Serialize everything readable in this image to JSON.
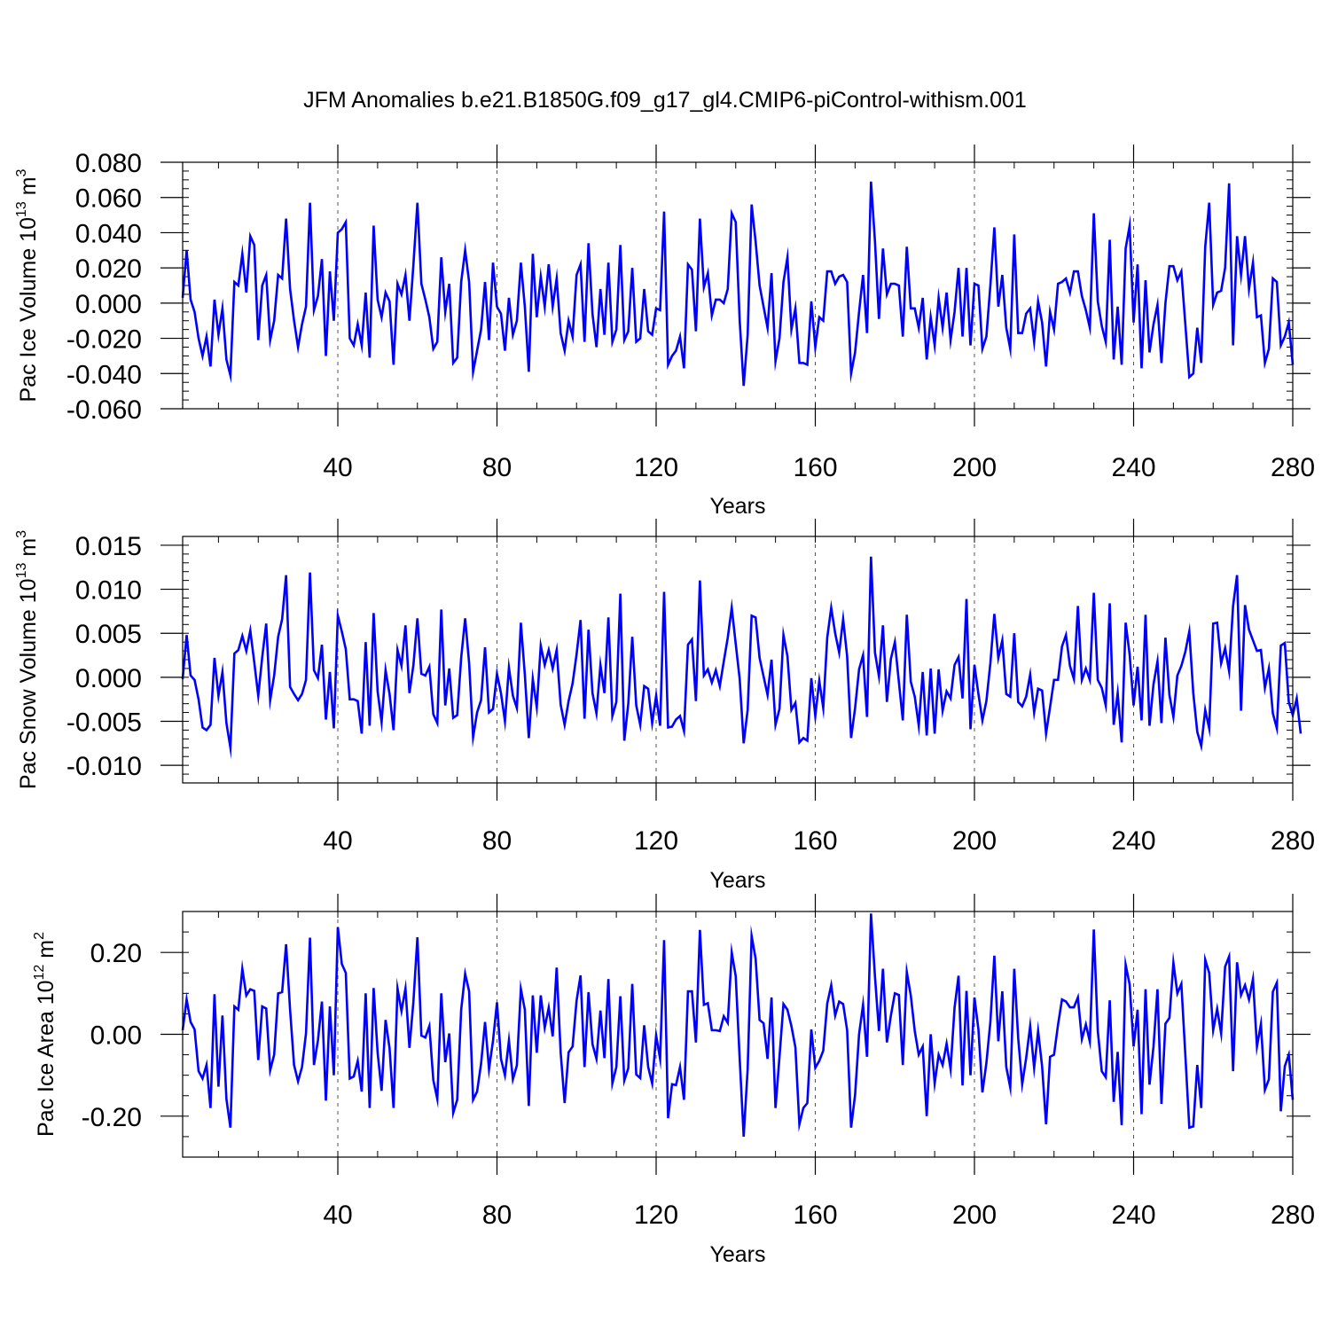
{
  "title": "JFM Anomalies b.e21.B1850G.f09_g17_gl4.CMIP6-piControl-withism.001",
  "colors": {
    "line": "#0000ff",
    "axes": "#000000",
    "grid": "#555555",
    "background": "#ffffff"
  },
  "chart_data": [
    {
      "type": "line",
      "name": "ice-volume",
      "title": "JFM Anomalies b.e21.B1850G.f09_g17_gl4.CMIP6-piControl-withism.001",
      "ylabel_prefix": "Pac Ice Volume 10",
      "ylabel_exp": "13",
      "ylabel_unit": " m",
      "ylabel_unit_exp": "3",
      "xlabel": "Years",
      "xlim": [
        1,
        280
      ],
      "ylim": [
        -0.06,
        0.08
      ],
      "xticks": [
        40,
        80,
        120,
        160,
        200,
        240,
        280
      ],
      "xtick_labels": [
        "40",
        "80",
        "120",
        "160",
        "200",
        "240",
        "280"
      ],
      "yticks": [
        -0.06,
        -0.04,
        -0.02,
        0.0,
        0.02,
        0.04,
        0.06,
        0.08
      ],
      "ytick_labels": [
        "-0.060",
        "-0.040",
        "-0.020",
        "0.000",
        "0.020",
        "0.040",
        "0.060",
        "0.080"
      ],
      "yminor": 0.005,
      "grid": "vertical-dashed",
      "values": [
        0.003,
        0.03,
        0.002,
        -0.005,
        -0.02,
        -0.03,
        -0.019,
        -0.036,
        0.002,
        -0.018,
        -0.003,
        -0.032,
        -0.041,
        0.012,
        0.01,
        0.028,
        0.006,
        0.038,
        0.033,
        -0.021,
        0.01,
        0.016,
        -0.021,
        -0.01,
        0.016,
        0.014,
        0.048,
        0.008,
        -0.01,
        -0.025,
        -0.012,
        -0.002,
        0.057,
        -0.004,
        0.004,
        0.025,
        -0.03,
        0.018,
        -0.01,
        0.04,
        0.042,
        0.046,
        -0.02,
        -0.024,
        -0.012,
        -0.024,
        0.006,
        -0.031,
        0.044,
        0.002,
        -0.008,
        0.006,
        0.001,
        -0.035,
        0.011,
        0.005,
        0.016,
        -0.01,
        0.022,
        0.057,
        0.011,
        0.002,
        -0.008,
        -0.026,
        -0.022,
        0.026,
        -0.005,
        0.011,
        -0.034,
        -0.031,
        0.012,
        0.03,
        0.012,
        -0.039,
        -0.027,
        -0.015,
        0.012,
        -0.021,
        0.023,
        -0.002,
        -0.006,
        -0.027,
        0.003,
        -0.018,
        -0.01,
        0.023,
        -0.002,
        -0.039,
        0.028,
        -0.008,
        0.015,
        -0.002,
        0.022,
        -0.002,
        0.014,
        -0.017,
        -0.027,
        -0.01,
        -0.019,
        0.016,
        0.022,
        -0.022,
        0.034,
        -0.006,
        -0.025,
        0.008,
        -0.018,
        0.023,
        -0.022,
        -0.015,
        0.033,
        -0.021,
        -0.016,
        0.02,
        -0.022,
        -0.02,
        0.008,
        -0.016,
        -0.018,
        -0.003,
        -0.004,
        0.052,
        -0.035,
        -0.03,
        -0.027,
        -0.019,
        -0.037,
        0.022,
        0.019,
        -0.016,
        0.048,
        0.009,
        0.017,
        -0.007,
        0.002,
        0.002,
        0.0,
        0.008,
        0.051,
        0.046,
        -0.01,
        -0.047,
        -0.018,
        0.056,
        0.035,
        0.01,
        -0.002,
        -0.014,
        0.017,
        -0.033,
        -0.02,
        0.012,
        0.026,
        -0.015,
        -0.003,
        -0.034,
        -0.034,
        -0.035,
        0.001,
        -0.025,
        -0.008,
        -0.01,
        0.018,
        0.018,
        0.011,
        0.015,
        0.016,
        0.012,
        -0.04,
        -0.028,
        -0.005,
        0.016,
        -0.017,
        0.069,
        0.035,
        -0.009,
        0.031,
        0.005,
        0.011,
        0.011,
        0.01,
        -0.019,
        0.032,
        -0.003,
        -0.003,
        -0.014,
        0.003,
        -0.032,
        -0.008,
        -0.024,
        0.003,
        -0.014,
        0.006,
        -0.021,
        -0.005,
        0.02,
        -0.019,
        0.02,
        -0.024,
        0.011,
        0.01,
        -0.026,
        -0.019,
        0.01,
        0.043,
        -0.002,
        0.016,
        -0.014,
        -0.026,
        0.039,
        -0.017,
        -0.017,
        -0.006,
        -0.003,
        -0.022,
        0.001,
        -0.011,
        -0.036,
        -0.005,
        -0.015,
        0.011,
        0.012,
        0.014,
        0.006,
        0.018,
        0.018,
        0.004,
        -0.004,
        -0.014,
        0.051,
        0.001,
        -0.013,
        -0.022,
        0.036,
        -0.032,
        -0.002,
        -0.035,
        0.031,
        0.044,
        -0.011,
        0.022,
        -0.037,
        0.013,
        -0.028,
        -0.012,
        -0.001,
        -0.034,
        0.0,
        0.021,
        0.021,
        0.013,
        0.018,
        -0.012,
        -0.042,
        -0.04,
        -0.014,
        -0.034,
        0.032,
        0.057,
        -0.001,
        0.006,
        0.007,
        0.02,
        0.068,
        -0.024,
        0.038,
        0.016,
        0.038,
        0.008,
        0.023,
        -0.008,
        -0.007,
        -0.034,
        -0.026,
        0.014,
        0.012,
        -0.024,
        -0.019,
        -0.011,
        -0.035
      ]
    },
    {
      "type": "line",
      "name": "snow-volume",
      "ylabel_prefix": "Pac Snow Volume 10",
      "ylabel_exp": "13",
      "ylabel_unit": " m",
      "ylabel_unit_exp": "3",
      "xlabel": "Years",
      "xlim": [
        1,
        280
      ],
      "ylim": [
        -0.012,
        0.016
      ],
      "xticks": [
        40,
        80,
        120,
        160,
        200,
        240,
        280
      ],
      "xtick_labels": [
        "40",
        "80",
        "120",
        "160",
        "200",
        "240",
        "280"
      ],
      "yticks": [
        -0.01,
        -0.005,
        0.0,
        0.005,
        0.01,
        0.015
      ],
      "ytick_labels": [
        "-0.010",
        "-0.005",
        "0.000",
        "0.005",
        "0.010",
        "0.015"
      ],
      "yminor": 0.001,
      "grid": "vertical-dashed",
      "values": [
        -0.0002,
        0.0048,
        0.0002,
        -0.0003,
        -0.0025,
        -0.0057,
        -0.006,
        -0.0054,
        0.0022,
        -0.0021,
        0.0006,
        -0.0052,
        -0.008,
        0.0027,
        0.0031,
        0.0047,
        0.003,
        0.0053,
        0.0017,
        -0.0021,
        0.0023,
        0.0061,
        -0.0026,
        0.0002,
        0.0046,
        0.0066,
        0.0116,
        -0.0011,
        -0.0019,
        -0.0026,
        -0.0019,
        -0.0003,
        0.0119,
        0.0008,
        -0.0001,
        0.0037,
        -0.0048,
        0.0006,
        -0.0058,
        0.007,
        0.0052,
        0.0032,
        -0.0025,
        -0.0025,
        -0.0027,
        -0.0064,
        0.004,
        -0.0055,
        0.0073,
        -0.0016,
        -0.0051,
        0.0008,
        -0.0019,
        -0.006,
        0.0031,
        0.0013,
        0.0059,
        -0.0018,
        0.0014,
        0.0067,
        0.0004,
        0.0002,
        0.0012,
        -0.0042,
        -0.0052,
        0.0077,
        -0.0032,
        0.001,
        -0.0046,
        -0.0043,
        0.0022,
        0.0067,
        0.0016,
        -0.0068,
        -0.004,
        -0.0026,
        0.0034,
        -0.004,
        -0.0036,
        0.0004,
        -0.0018,
        -0.005,
        0.0011,
        -0.0021,
        -0.0035,
        0.0062,
        0.0003,
        -0.0069,
        -0.0002,
        -0.0034,
        0.0036,
        0.0014,
        0.0031,
        0.001,
        0.0031,
        -0.0031,
        -0.0054,
        -0.0027,
        -0.0007,
        0.0026,
        0.0065,
        -0.0047,
        0.0054,
        -0.0018,
        -0.0041,
        0.0014,
        -0.0018,
        0.0068,
        -0.0044,
        -0.0028,
        0.0095,
        -0.0072,
        -0.003,
        0.0046,
        -0.0032,
        -0.0054,
        -0.001,
        -0.0013,
        -0.0052,
        -0.0021,
        -0.0055,
        0.0097,
        -0.0057,
        -0.0056,
        -0.0048,
        -0.0044,
        -0.0061,
        0.0037,
        0.0043,
        -0.0027,
        0.011,
        0.0002,
        0.0009,
        -0.0006,
        0.0008,
        -0.001,
        0.0018,
        0.0045,
        0.0079,
        0.0038,
        -0.0002,
        -0.0075,
        -0.0037,
        0.007,
        0.0068,
        0.0022,
        0.0001,
        -0.002,
        0.002,
        -0.0054,
        -0.0036,
        0.0048,
        0.0024,
        -0.0037,
        -0.0029,
        -0.0074,
        -0.0069,
        -0.0072,
        -0.0001,
        -0.0044,
        -0.0004,
        -0.0035,
        0.0045,
        0.0079,
        0.005,
        0.0028,
        0.0066,
        0.0024,
        -0.0069,
        -0.0035,
        0.0009,
        0.0025,
        -0.0045,
        0.0137,
        0.0028,
        0.0001,
        0.0059,
        -0.0028,
        0.0021,
        0.004,
        -0.0005,
        -0.0049,
        0.0071,
        -0.0005,
        -0.0022,
        -0.0055,
        0.0006,
        -0.0066,
        0.001,
        -0.0064,
        0.0009,
        -0.0038,
        -0.0016,
        -0.0024,
        0.0014,
        0.0023,
        -0.0024,
        0.0089,
        -0.0059,
        0.0014,
        -0.0019,
        -0.0049,
        -0.0027,
        0.0016,
        0.0072,
        0.0022,
        0.0042,
        -0.0019,
        -0.0022,
        0.005,
        -0.0028,
        -0.0033,
        -0.0022,
        0.0003,
        -0.004,
        -0.0013,
        -0.0015,
        -0.0064,
        -0.0034,
        -0.0003,
        -0.0003,
        0.0035,
        0.0048,
        0.0013,
        -0.0002,
        0.0081,
        -0.0003,
        0.001,
        -0.0003,
        0.0096,
        -0.0003,
        -0.0012,
        -0.0032,
        0.0084,
        -0.0054,
        -0.0018,
        -0.0074,
        0.0062,
        0.0026,
        -0.0032,
        0.0012,
        -0.0049,
        0.0071,
        -0.0055,
        -0.0008,
        0.0018,
        -0.0052,
        0.0045,
        -0.002,
        -0.0045,
        0.0002,
        0.0013,
        0.0029,
        0.0052,
        -0.0018,
        -0.0062,
        -0.0078,
        -0.0037,
        -0.0058,
        0.0061,
        0.0062,
        0.0016,
        0.0033,
        0.0007,
        0.0081,
        0.0116,
        -0.0038,
        0.0082,
        0.0054,
        0.0042,
        0.003,
        0.0031,
        -0.0012,
        0.001,
        -0.0041,
        -0.0058,
        0.0036,
        0.0039,
        -0.0028,
        -0.0043,
        -0.0024,
        -0.0064
      ]
    },
    {
      "type": "line",
      "name": "ice-area",
      "ylabel_prefix": "Pac Ice Area 10",
      "ylabel_exp": "12",
      "ylabel_unit": " m",
      "ylabel_unit_exp": "2",
      "xlabel": "Years",
      "xlim": [
        1,
        280
      ],
      "ylim": [
        -0.3,
        0.3
      ],
      "xticks": [
        40,
        80,
        120,
        160,
        200,
        240,
        280
      ],
      "xtick_labels": [
        "40",
        "80",
        "120",
        "160",
        "200",
        "240",
        "280"
      ],
      "yticks": [
        -0.2,
        0.0,
        0.2
      ],
      "ytick_labels": [
        "-0.20",
        "0.00",
        "0.20"
      ],
      "yminor": 0.05,
      "grid": "vertical-dashed",
      "values": [
        0.01,
        0.085,
        0.03,
        0.012,
        -0.09,
        -0.108,
        -0.075,
        -0.18,
        0.098,
        -0.128,
        0.046,
        -0.158,
        -0.228,
        0.068,
        0.06,
        0.16,
        0.095,
        0.11,
        0.106,
        -0.063,
        0.068,
        0.063,
        -0.088,
        -0.05,
        0.1,
        0.103,
        0.22,
        0.06,
        -0.075,
        -0.115,
        -0.08,
        0.002,
        0.236,
        -0.075,
        -0.015,
        0.08,
        -0.162,
        0.068,
        -0.1,
        0.262,
        0.172,
        0.15,
        -0.108,
        -0.103,
        -0.065,
        -0.14,
        0.1,
        -0.18,
        0.113,
        -0.045,
        -0.138,
        0.035,
        -0.034,
        -0.18,
        0.112,
        0.057,
        0.112,
        -0.033,
        0.08,
        0.237,
        -0.003,
        -0.008,
        0.02,
        -0.112,
        -0.158,
        0.1,
        -0.068,
        0.002,
        -0.192,
        -0.16,
        0.06,
        0.148,
        0.105,
        -0.16,
        -0.14,
        -0.072,
        0.03,
        -0.085,
        -0.016,
        0.078,
        -0.06,
        -0.1,
        -0.015,
        -0.11,
        -0.076,
        0.111,
        0.06,
        -0.175,
        0.095,
        -0.045,
        0.095,
        0.016,
        0.065,
        -0.005,
        0.163,
        -0.044,
        -0.168,
        -0.044,
        -0.03,
        0.082,
        0.144,
        -0.08,
        0.103,
        -0.024,
        -0.06,
        0.058,
        -0.058,
        0.135,
        -0.12,
        -0.08,
        0.093,
        -0.113,
        -0.083,
        0.123,
        -0.098,
        -0.107,
        0.022,
        -0.08,
        -0.12,
        -0.003,
        -0.06,
        0.23,
        -0.205,
        -0.122,
        -0.124,
        -0.08,
        -0.16,
        0.105,
        0.105,
        -0.02,
        0.255,
        0.072,
        0.076,
        0.01,
        0.01,
        0.008,
        0.044,
        0.028,
        0.2,
        0.142,
        -0.06,
        -0.25,
        -0.085,
        0.24,
        0.185,
        0.035,
        0.027,
        -0.06,
        0.09,
        -0.18,
        -0.055,
        0.074,
        0.06,
        0.02,
        -0.032,
        -0.22,
        -0.18,
        -0.168,
        0.012,
        -0.082,
        -0.065,
        -0.04,
        0.075,
        0.12,
        0.046,
        0.08,
        0.074,
        0.01,
        -0.228,
        -0.148,
        0.0,
        0.072,
        -0.055,
        0.295,
        0.141,
        0.008,
        0.16,
        -0.02,
        0.046,
        0.1,
        0.096,
        -0.075,
        0.152,
        0.095,
        0.008,
        -0.05,
        -0.03,
        -0.2,
        0.0,
        -0.12,
        -0.05,
        -0.075,
        -0.023,
        -0.085,
        0.065,
        0.143,
        -0.125,
        0.106,
        -0.1,
        0.09,
        0.012,
        -0.142,
        -0.07,
        0.03,
        0.192,
        -0.017,
        0.105,
        -0.08,
        -0.13,
        0.16,
        -0.01,
        -0.122,
        -0.058,
        0.02,
        -0.082,
        0.008,
        -0.078,
        -0.22,
        -0.055,
        -0.05,
        0.023,
        0.085,
        0.08,
        0.066,
        0.066,
        0.09,
        -0.012,
        0.024,
        -0.018,
        0.256,
        0.008,
        -0.09,
        -0.105,
        0.083,
        -0.165,
        -0.043,
        -0.222,
        0.17,
        0.122,
        -0.03,
        0.06,
        -0.195,
        0.11,
        -0.123,
        -0.03,
        0.11,
        -0.17,
        0.026,
        0.04,
        0.175,
        0.1,
        0.123,
        -0.05,
        -0.228,
        -0.225,
        -0.075,
        -0.18,
        0.182,
        0.15,
        0.01,
        0.062,
        0.002,
        0.165,
        0.19,
        -0.09,
        0.176,
        0.096,
        0.12,
        0.085,
        0.135,
        -0.03,
        0.025,
        -0.136,
        -0.11,
        0.104,
        0.126,
        -0.188,
        -0.078,
        -0.05,
        -0.16
      ]
    }
  ]
}
